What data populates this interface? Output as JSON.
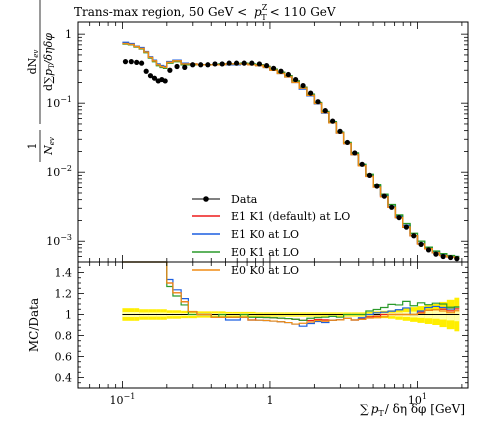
{
  "chart_data": {
    "type": "line",
    "title": "Trans-max region, 50 GeV < p_T^Z < 110 GeV",
    "title_parts": {
      "prefix": "Trans-max region, 50 GeV <",
      "var": "p",
      "sub": "T",
      "sup": "Z",
      "suffix": "< 110 GeV"
    },
    "xlabel": "∑ p_T / δη δφ [GeV]",
    "xlabel_parts": {
      "prefix": "∑",
      "var": "p",
      "sub": "T",
      "suffix": "/ δη δφ [GeV]"
    },
    "ylabel": "1/N_ev dN_ev / d∑p_T/δηδφ",
    "ylabel_parts": {
      "num_left": "1",
      "den_left": "N",
      "den_left_sub": "ev",
      "num_right": "dN",
      "num_right_sub": "ev",
      "den_right": "d∑",
      "den_right_var": "p",
      "den_right_sub": "T",
      "den_right_suffix": "/δηδφ"
    },
    "ratio_ylabel": "MC/Data",
    "xscale": "log",
    "yscale": "log",
    "xlim": [
      0.05,
      22
    ],
    "ylim": [
      0.0005,
      1.5
    ],
    "ratio_ylim": [
      0.3,
      1.5
    ],
    "x_ticks": [
      {
        "value": 0.1,
        "label": "10",
        "exp": "−1"
      },
      {
        "value": 1,
        "label": "1",
        "exp": ""
      },
      {
        "value": 10,
        "label": "10",
        "exp": "1"
      }
    ],
    "y_ticks": [
      {
        "value": 1,
        "label": "1",
        "exp": ""
      },
      {
        "value": 0.1,
        "label": "10",
        "exp": "−1"
      },
      {
        "value": 0.01,
        "label": "10",
        "exp": "−2"
      },
      {
        "value": 0.001,
        "label": "10",
        "exp": "−3"
      }
    ],
    "ratio_ticks": [
      {
        "value": 1.4,
        "label": "1.4"
      },
      {
        "value": 1.2,
        "label": "1.2"
      },
      {
        "value": 1.0,
        "label": "1"
      },
      {
        "value": 0.8,
        "label": "0.8"
      },
      {
        "value": 0.6,
        "label": "0.6"
      },
      {
        "value": 0.4,
        "label": "0.4"
      }
    ],
    "legend_position": "bottom-center",
    "bin_edges": [
      0.1,
      0.11,
      0.12,
      0.13,
      0.14,
      0.15,
      0.16,
      0.17,
      0.18,
      0.19,
      0.2,
      0.22,
      0.25,
      0.28,
      0.32,
      0.36,
      0.4,
      0.45,
      0.5,
      0.56,
      0.63,
      0.71,
      0.8,
      0.9,
      1.0,
      1.12,
      1.26,
      1.41,
      1.58,
      1.78,
      2.0,
      2.24,
      2.51,
      2.82,
      3.16,
      3.55,
      3.98,
      4.47,
      5.01,
      5.62,
      6.31,
      7.08,
      7.94,
      8.91,
      10.0,
      11.2,
      12.6,
      14.1,
      15.8,
      17.8,
      19.2
    ],
    "series": [
      {
        "name": "Data",
        "color": "#000000",
        "style": "points",
        "values": [
          0.4,
          0.4,
          0.39,
          0.38,
          0.29,
          0.25,
          0.23,
          0.21,
          0.22,
          0.21,
          0.3,
          0.34,
          0.33,
          0.36,
          0.36,
          0.36,
          0.37,
          0.37,
          0.38,
          0.38,
          0.38,
          0.38,
          0.37,
          0.35,
          0.32,
          0.29,
          0.26,
          0.22,
          0.18,
          0.14,
          0.105,
          0.078,
          0.055,
          0.039,
          0.027,
          0.019,
          0.013,
          0.009,
          0.0063,
          0.0045,
          0.0031,
          0.0022,
          0.0016,
          0.0012,
          0.0009,
          0.00075,
          0.00065,
          0.0006,
          0.00058,
          0.00056
        ]
      },
      {
        "name": "E1 K1 (default) at LO",
        "color": "#ee1c1c",
        "style": "step",
        "values": [
          0.74,
          0.72,
          0.66,
          0.63,
          0.55,
          0.46,
          0.41,
          0.36,
          0.34,
          0.33,
          0.39,
          0.41,
          0.37,
          0.37,
          0.36,
          0.36,
          0.36,
          0.36,
          0.37,
          0.37,
          0.37,
          0.36,
          0.36,
          0.34,
          0.31,
          0.28,
          0.25,
          0.21,
          0.17,
          0.132,
          0.1,
          0.074,
          0.052,
          0.037,
          0.026,
          0.018,
          0.0125,
          0.0088,
          0.0062,
          0.0045,
          0.0031,
          0.0022,
          0.0016,
          0.0012,
          0.00092,
          0.00078,
          0.00068,
          0.00063,
          0.0006,
          0.00059
        ]
      },
      {
        "name": "E1 K0 at LO",
        "color": "#1c5fe0",
        "style": "step",
        "values": [
          0.76,
          0.73,
          0.67,
          0.64,
          0.56,
          0.47,
          0.42,
          0.37,
          0.35,
          0.34,
          0.4,
          0.42,
          0.38,
          0.37,
          0.36,
          0.36,
          0.36,
          0.36,
          0.36,
          0.36,
          0.37,
          0.36,
          0.35,
          0.33,
          0.3,
          0.27,
          0.24,
          0.2,
          0.16,
          0.128,
          0.098,
          0.072,
          0.052,
          0.037,
          0.026,
          0.018,
          0.0126,
          0.009,
          0.0064,
          0.0046,
          0.0032,
          0.0023,
          0.0017,
          0.0012,
          0.00093,
          0.0008,
          0.0007,
          0.00064,
          0.00061,
          0.0006
        ]
      },
      {
        "name": "E0 K1 at LO",
        "color": "#2a9a2a",
        "style": "step",
        "values": [
          0.72,
          0.7,
          0.65,
          0.61,
          0.54,
          0.45,
          0.4,
          0.35,
          0.33,
          0.32,
          0.38,
          0.4,
          0.36,
          0.36,
          0.36,
          0.36,
          0.36,
          0.37,
          0.37,
          0.37,
          0.38,
          0.37,
          0.36,
          0.34,
          0.31,
          0.28,
          0.25,
          0.21,
          0.17,
          0.135,
          0.102,
          0.076,
          0.054,
          0.038,
          0.027,
          0.019,
          0.013,
          0.0093,
          0.0066,
          0.0048,
          0.0034,
          0.0024,
          0.0018,
          0.0013,
          0.001,
          0.00082,
          0.00072,
          0.00066,
          0.00062,
          0.0006
        ]
      },
      {
        "name": "E0 K0 at LO",
        "color": "#f08c14",
        "style": "step",
        "values": [
          0.73,
          0.71,
          0.66,
          0.62,
          0.55,
          0.46,
          0.41,
          0.36,
          0.34,
          0.33,
          0.39,
          0.41,
          0.37,
          0.37,
          0.36,
          0.36,
          0.36,
          0.36,
          0.37,
          0.37,
          0.37,
          0.36,
          0.35,
          0.33,
          0.3,
          0.27,
          0.24,
          0.2,
          0.165,
          0.13,
          0.099,
          0.073,
          0.052,
          0.037,
          0.026,
          0.018,
          0.0124,
          0.0087,
          0.0061,
          0.0044,
          0.0031,
          0.0022,
          0.0016,
          0.0012,
          0.00091,
          0.00078,
          0.00068,
          0.00062,
          0.00059,
          0.00058
        ]
      }
    ],
    "data_uncertainty_band": {
      "color": "#ffee00",
      "inner_color": "#ffffaa",
      "half_width": [
        0.06,
        0.06,
        0.06,
        0.05,
        0.05,
        0.05,
        0.05,
        0.05,
        0.05,
        0.05,
        0.04,
        0.04,
        0.035,
        0.035,
        0.03,
        0.03,
        0.03,
        0.03,
        0.025,
        0.025,
        0.025,
        0.025,
        0.02,
        0.02,
        0.02,
        0.02,
        0.02,
        0.02,
        0.02,
        0.02,
        0.02,
        0.02,
        0.02,
        0.02,
        0.02,
        0.02,
        0.02,
        0.025,
        0.03,
        0.035,
        0.04,
        0.05,
        0.06,
        0.07,
        0.08,
        0.09,
        0.1,
        0.12,
        0.14,
        0.16
      ]
    }
  }
}
